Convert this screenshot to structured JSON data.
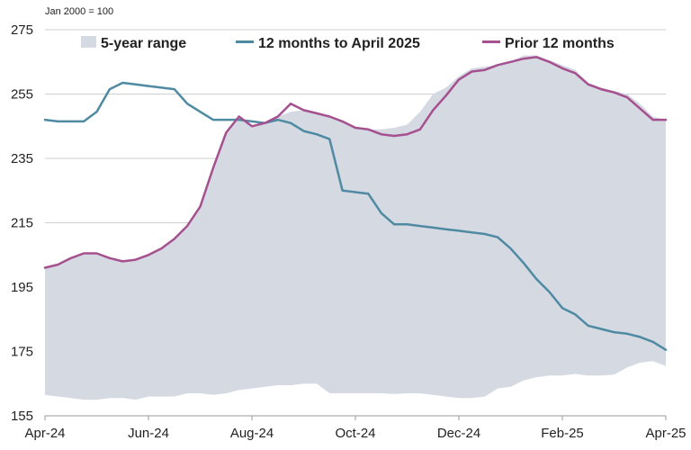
{
  "chart_data": {
    "type": "area",
    "units_note": "Jan 2000 = 100",
    "y_axis": {
      "min": 155,
      "max": 275,
      "ticks": [
        275,
        255,
        235,
        215,
        195,
        175,
        155
      ]
    },
    "x_axis": {
      "start": "Apr-24",
      "end": "Apr-25",
      "tick_labels": [
        "Apr-24",
        "Jun-24",
        "Aug-24",
        "Oct-24",
        "Dec-24",
        "Feb-25",
        "Apr-25"
      ]
    },
    "grid": "horizontal",
    "legend": {
      "position": "top",
      "entries": [
        "5-year range",
        "12 months to April 2025",
        "Prior 12 months"
      ]
    },
    "colors": {
      "range": "#d5d9e2",
      "series1": "#4f8aa3",
      "series2": "#a5508f",
      "grid": "#cfcfcf"
    },
    "x_months": [
      0,
      0.25,
      0.5,
      0.75,
      1.0,
      1.25,
      1.5,
      1.75,
      2.0,
      2.25,
      2.5,
      2.75,
      3.0,
      3.25,
      3.5,
      3.75,
      4.0,
      4.25,
      4.5,
      4.75,
      5.0,
      5.25,
      5.5,
      5.75,
      6.0,
      6.25,
      6.5,
      6.75,
      7.0,
      7.25,
      7.5,
      7.75,
      8.0,
      8.25,
      8.5,
      8.75,
      9.0,
      9.25,
      9.5,
      9.75,
      10.0,
      10.25,
      10.5,
      10.75,
      11.0,
      11.25,
      11.5,
      11.75,
      12.0
    ],
    "range_min": [
      161.5,
      161.0,
      160.5,
      160.0,
      160.0,
      160.5,
      160.5,
      160.0,
      161.0,
      161.0,
      161.0,
      162.0,
      162.0,
      161.5,
      162.0,
      163.0,
      163.5,
      164.0,
      164.5,
      164.5,
      165.0,
      165.0,
      162.0,
      162.0,
      162.0,
      162.0,
      162.0,
      161.8,
      162.0,
      162.0,
      161.5,
      161.0,
      160.5,
      160.5,
      161.0,
      163.5,
      164.0,
      166.0,
      167.0,
      167.5,
      167.5,
      168.0,
      167.5,
      167.5,
      167.8,
      170.0,
      171.5,
      172.0,
      170.5
    ],
    "range_max": [
      201.0,
      202.0,
      204.0,
      205.5,
      205.5,
      204.0,
      203.0,
      203.5,
      205.0,
      207.0,
      210.0,
      214.0,
      220.0,
      232.0,
      243.0,
      248.0,
      245.0,
      246.0,
      248.0,
      249.5,
      250.0,
      249.0,
      248.0,
      246.5,
      244.5,
      244.0,
      244.0,
      244.5,
      245.5,
      249.5,
      255.0,
      257.0,
      260.5,
      263.0,
      263.5,
      264.0,
      265.0,
      267.0,
      267.0,
      265.5,
      264.0,
      262.5,
      258.5,
      257.0,
      256.0,
      255.0,
      252.0,
      248.0,
      247.0
    ],
    "series": [
      {
        "name": "12 months to April 2025",
        "values": [
          247.0,
          246.5,
          246.5,
          246.5,
          249.5,
          256.5,
          258.5,
          258.0,
          257.5,
          257.0,
          256.5,
          252.0,
          249.5,
          247.0,
          247.0,
          247.0,
          246.5,
          246.0,
          247.0,
          246.0,
          243.5,
          242.5,
          241.0,
          225.0,
          224.5,
          224.0,
          218.0,
          214.5,
          214.5,
          214.0,
          213.5,
          213.0,
          212.5,
          212.0,
          211.5,
          210.5,
          207.0,
          202.5,
          197.5,
          193.5,
          188.5,
          186.5,
          183.0,
          182.0,
          181.0,
          180.5,
          179.5,
          178.0,
          175.5
        ]
      },
      {
        "name": "Prior 12 months",
        "values": [
          201.0,
          202.0,
          204.0,
          205.5,
          205.5,
          204.0,
          203.0,
          203.5,
          205.0,
          207.0,
          210.0,
          214.0,
          220.0,
          232.0,
          243.0,
          248.0,
          245.0,
          246.0,
          248.0,
          252.0,
          250.0,
          249.0,
          248.0,
          246.5,
          244.5,
          244.0,
          242.5,
          242.0,
          242.5,
          244.0,
          250.0,
          254.5,
          259.5,
          262.0,
          262.5,
          264.0,
          265.0,
          266.0,
          266.5,
          265.0,
          263.0,
          261.5,
          258.0,
          256.5,
          255.5,
          254.0,
          250.5,
          247.0,
          247.0
        ]
      }
    ]
  }
}
